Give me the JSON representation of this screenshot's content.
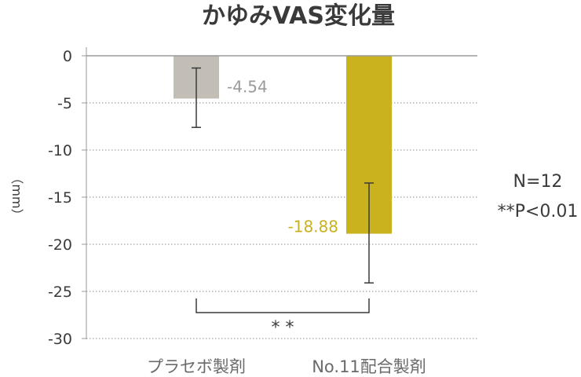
{
  "chart_data": {
    "type": "bar",
    "title": "かゆみVAS変化量",
    "ylabel": "（mm）",
    "ylim": [
      -30,
      0
    ],
    "yticks": [
      0,
      -5,
      -10,
      -15,
      -20,
      -25,
      -30
    ],
    "ytick_labels": [
      "0",
      "-5",
      "-10",
      "-15",
      "-20",
      "-25",
      "-30"
    ],
    "categories": [
      "プラセボ製剤",
      "No.11配合製剤"
    ],
    "values": [
      -4.54,
      -18.88
    ],
    "value_labels": [
      "-4.54",
      "-18.88"
    ],
    "error_bars": [
      [
        -1.3,
        -7.6
      ],
      [
        -13.5,
        -24.1
      ]
    ],
    "colors": [
      "#c2beb5",
      "#c9b21e"
    ],
    "value_label_colors": [
      "#9b9b9b",
      "#c9b21e"
    ],
    "grid": true,
    "significance": {
      "between": [
        0,
        1
      ],
      "label": "* *"
    },
    "annotations": [
      "N=12",
      "**P<0.01"
    ]
  }
}
